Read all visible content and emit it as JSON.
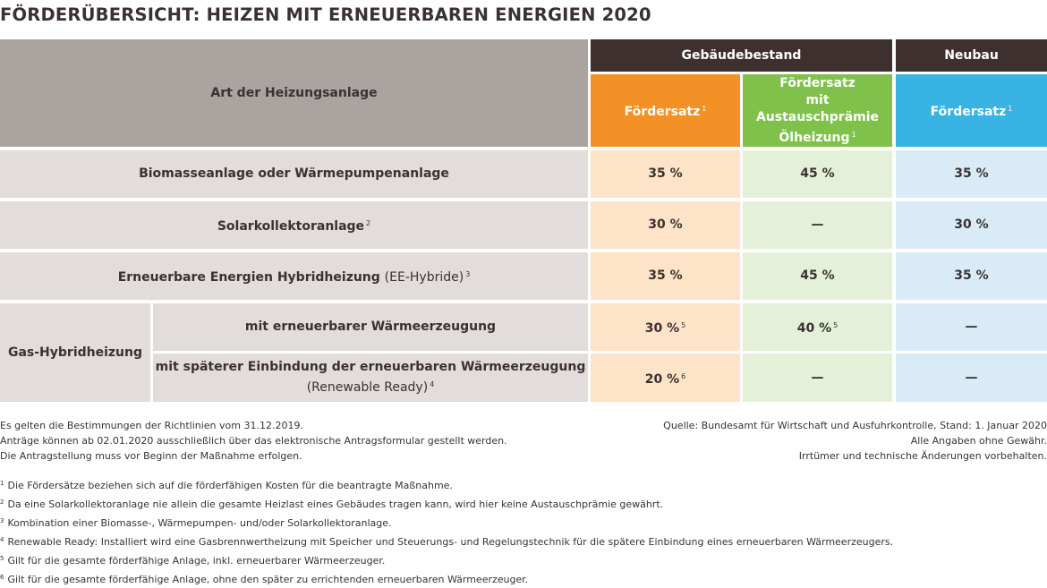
{
  "title": "FÖRDERÜBERSICHT: HEIZEN MIT ERNEUERBAREN ENERGIEN 2020",
  "header": {
    "art": "Art der Heizungsanlage",
    "bestand": "Gebäudebestand",
    "neubau": "Neubau",
    "foerdersatz": "Fördersatz",
    "foerdersatz_sup": "1",
    "austausch_line1": "Fördersatz",
    "austausch_line2": "mit Austauschprämie",
    "austausch_line3": "Ölheizung",
    "austausch_sup": "1",
    "neubau_foerdersatz": "Fördersatz",
    "neubau_sup": "1"
  },
  "rows": [
    {
      "label": "Biomasseanlage oder Wärmepumpenanlage",
      "sup": "",
      "suffix": "",
      "suffix_sup": "",
      "bestand": "35 %",
      "bestand_sup": "",
      "austausch": "45 %",
      "austausch_sup": "",
      "neubau": "35 %"
    },
    {
      "label": "Solarkollektoranlage",
      "sup": "2",
      "suffix": "",
      "suffix_sup": "",
      "bestand": "30 %",
      "bestand_sup": "",
      "austausch": "—",
      "austausch_sup": "",
      "neubau": "30 %"
    },
    {
      "label": "Erneuerbare Energien Hybridheizung",
      "sup": "",
      "suffix": "(EE-Hybride)",
      "suffix_sup": "3",
      "bestand": "35 %",
      "bestand_sup": "",
      "austausch": "45 %",
      "austausch_sup": "",
      "neubau": "35 %"
    }
  ],
  "gas": {
    "label": "Gas-Hybridheizung",
    "sub": [
      {
        "label": "mit erneuerbarer Wärmeerzeugung",
        "label2": "",
        "sup": "",
        "bestand": "30 %",
        "bestand_sup": "5",
        "austausch": "40 %",
        "austausch_sup": "5",
        "neubau": "—"
      },
      {
        "label": "mit späterer Einbindung der erneuerbaren Wärmeerzeugung",
        "label2": "(Renewable Ready)",
        "sup": "4",
        "bestand": "20 %",
        "bestand_sup": "6",
        "austausch": "—",
        "austausch_sup": "",
        "neubau": "—"
      }
    ]
  },
  "notes_left": [
    "Es gelten die Bestimmungen der Richtlinien vom 31.12.2019.",
    "Anträge können ab 02.01.2020 ausschließlich über das elektronische Antragsformular gestellt werden.",
    "Die Antragstellung muss vor Beginn der Maßnahme erfolgen."
  ],
  "notes_right": [
    "Quelle: Bundesamt für Wirtschaft und Ausfuhrkontrolle, Stand: 1. Januar 2020",
    "Alle Angaben ohne Gewähr.",
    "Irrtümer und technische Änderungen vorbehalten."
  ],
  "footnotes": [
    {
      "n": "1",
      "text": "Die Fördersätze beziehen sich auf die förderfähigen Kosten für die beantragte Maßnahme."
    },
    {
      "n": "2",
      "text": "Da eine Solarkollektoranlage nie allein die gesamte Heizlast eines Gebäudes tragen kann, wird hier keine Austauschprämie gewährt."
    },
    {
      "n": "3",
      "text": "Kombination einer Biomasse-, Wärmepumpen- und/oder Solarkollektoranlage."
    },
    {
      "n": "4",
      "text": "Renewable Ready: Installiert wird eine Gasbrennwertheizung mit Speicher und Steuerungs- und Regelungstechnik für die spätere Einbindung eines erneuerbaren Wärmeerzeugers."
    },
    {
      "n": "5",
      "text": "Gilt für die gesamte förderfähige Anlage, inkl. erneuerbarer Wärmeerzeuger."
    },
    {
      "n": "6",
      "text": "Gilt für die gesamte förderfähige Anlage, ohne den später zu errichtenden erneuerbaren Wärmeerzeuger."
    }
  ]
}
